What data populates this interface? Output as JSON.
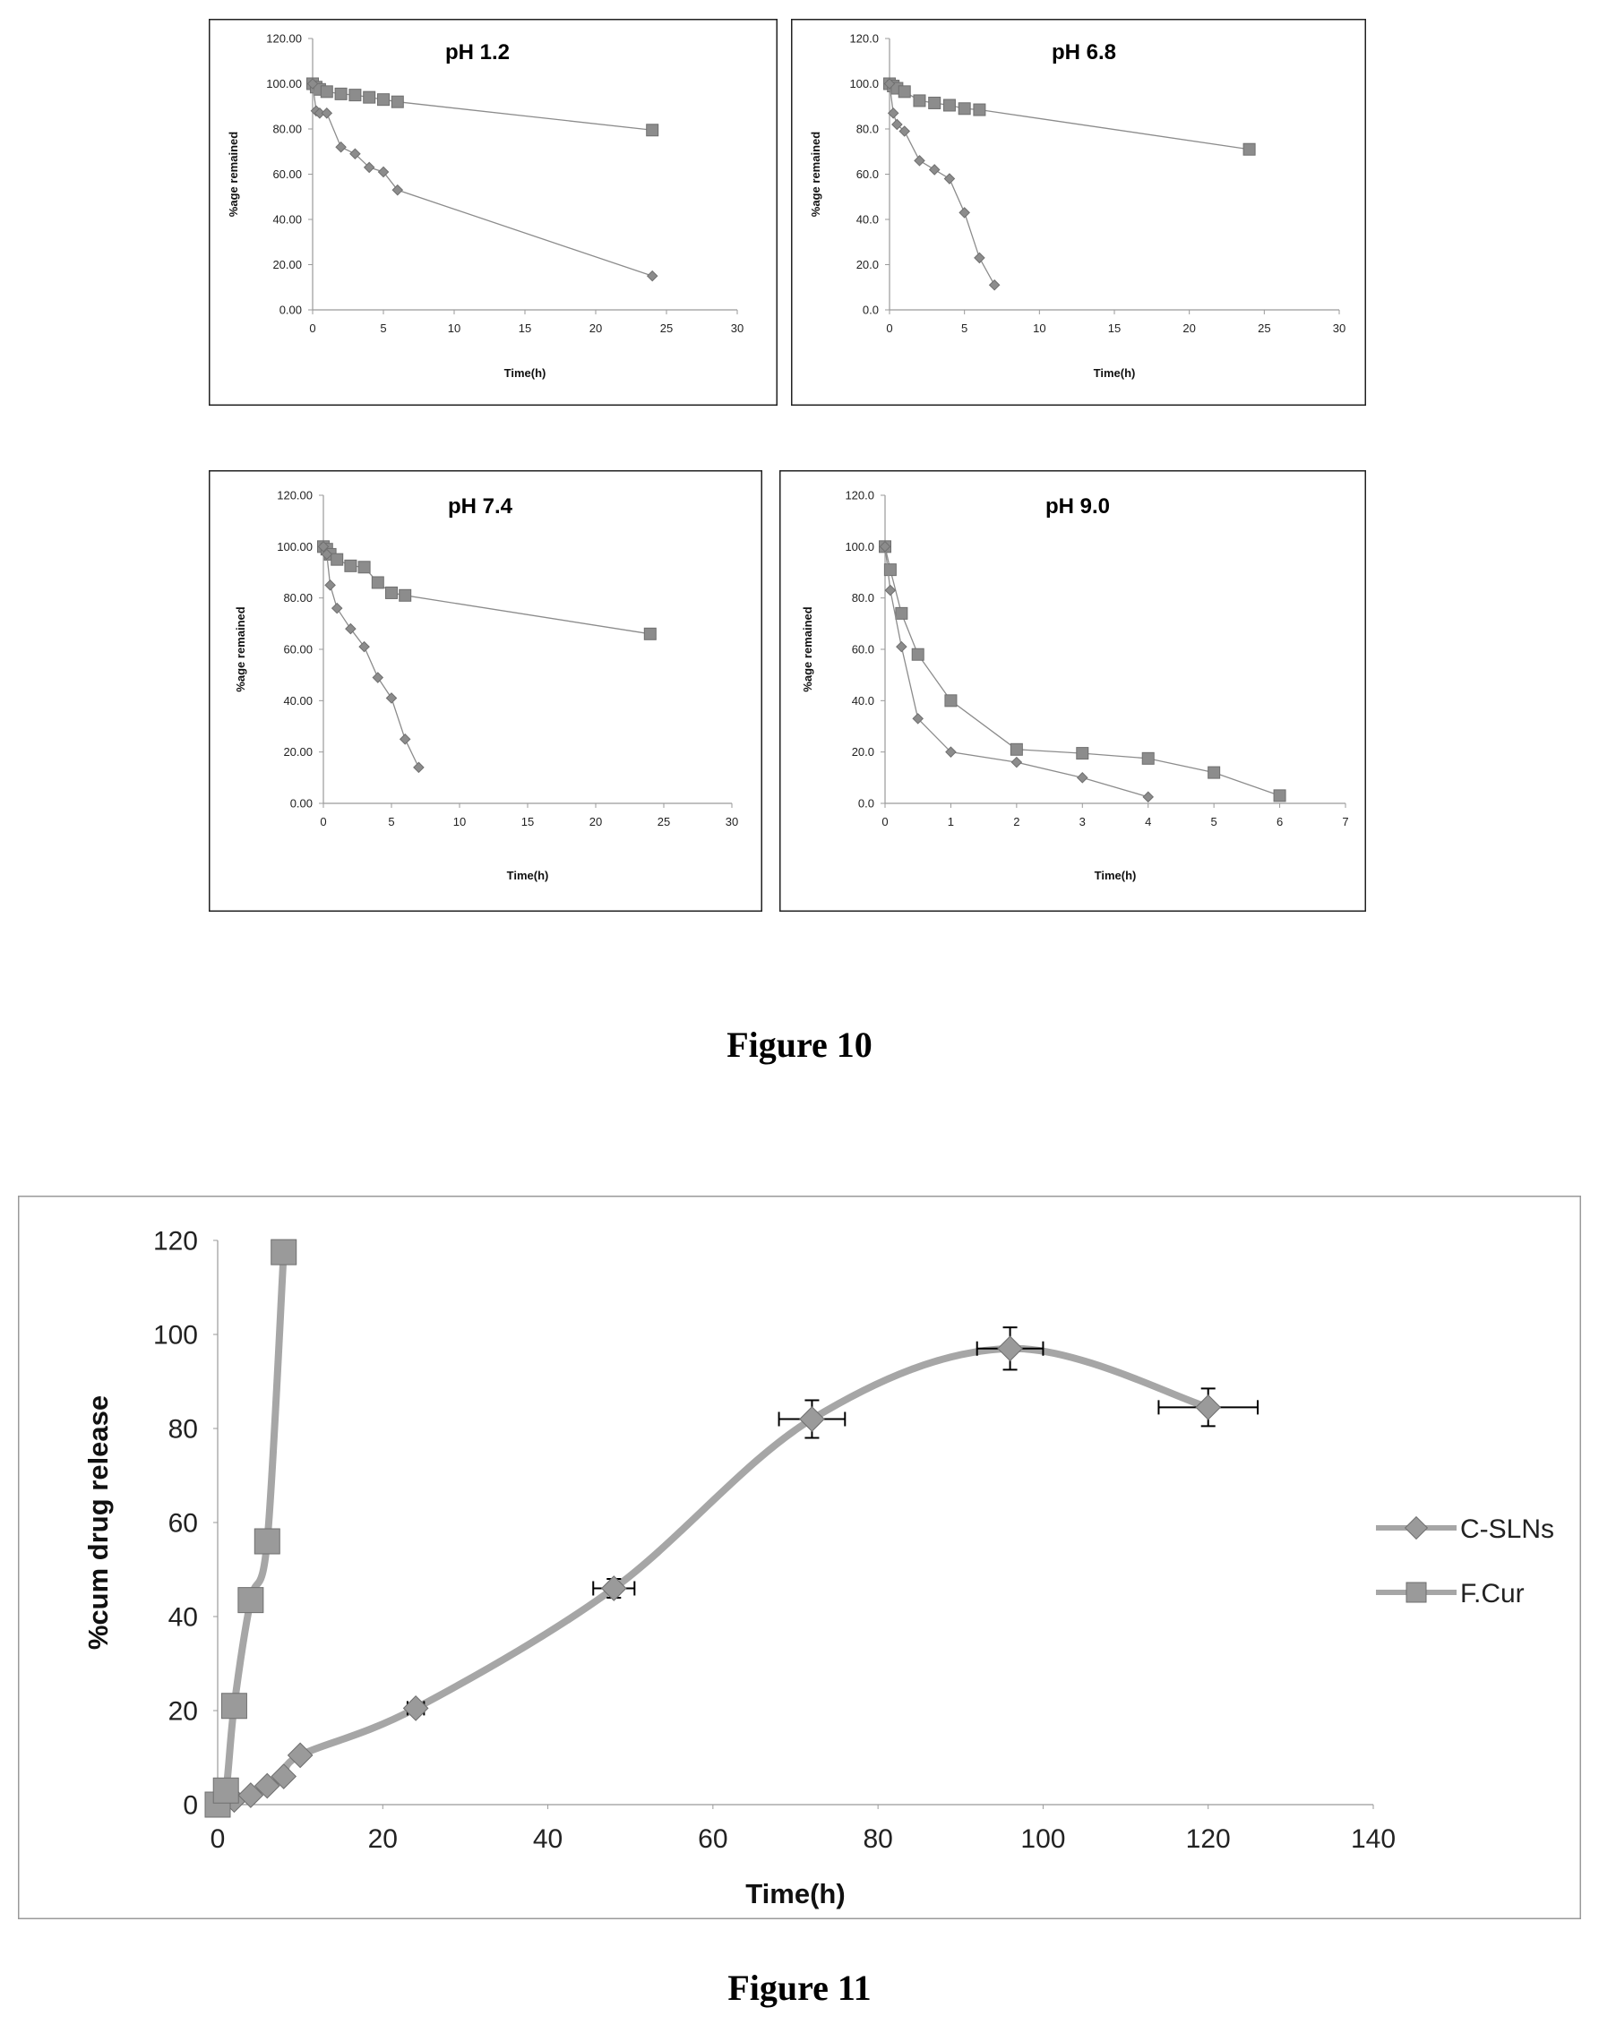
{
  "figure10": {
    "caption": "Figure 10"
  },
  "figure11": {
    "caption": "Figure 11"
  },
  "chart_data": [
    {
      "type": "line",
      "title": "pH 1.2",
      "xlabel": "Time(h)",
      "ylabel": "%age remained",
      "xlim": [
        0,
        30
      ],
      "ylim": [
        0,
        120
      ],
      "xticks": [
        "0",
        "5",
        "10",
        "15",
        "20",
        "25",
        "30"
      ],
      "yticks": [
        "0.00",
        "20.00",
        "40.00",
        "60.00",
        "80.00",
        "100.00",
        "120.00"
      ],
      "series": [
        {
          "marker": "square",
          "x": [
            0,
            0.25,
            0.5,
            1,
            2,
            3,
            4,
            5,
            6,
            24
          ],
          "y": [
            100,
            98.5,
            97.5,
            96.5,
            95.5,
            95,
            94,
            93,
            92,
            79.5
          ]
        },
        {
          "marker": "diamond",
          "x": [
            0,
            0.25,
            0.5,
            1,
            2,
            3,
            4,
            5,
            6,
            24
          ],
          "y": [
            100,
            88,
            87,
            87,
            72,
            69,
            63,
            61,
            53,
            15
          ]
        }
      ]
    },
    {
      "type": "line",
      "title": "pH 6.8",
      "xlabel": "Time(h)",
      "ylabel": "%age remained",
      "xlim": [
        0,
        30
      ],
      "ylim": [
        0,
        120
      ],
      "xticks": [
        "0",
        "5",
        "10",
        "15",
        "20",
        "25",
        "30"
      ],
      "yticks": [
        "0.0",
        "20.0",
        "40.0",
        "60.0",
        "80.0",
        "100.0",
        "120.0"
      ],
      "series": [
        {
          "marker": "square",
          "x": [
            0,
            0.25,
            0.5,
            1,
            2,
            3,
            4,
            5,
            6,
            24
          ],
          "y": [
            100,
            99,
            98,
            96.5,
            92.5,
            91.5,
            90.5,
            89,
            88.5,
            71
          ]
        },
        {
          "marker": "diamond",
          "x": [
            0,
            0.25,
            0.5,
            1,
            2,
            3,
            4,
            5,
            6,
            7
          ],
          "y": [
            100,
            87,
            82,
            79,
            66,
            62,
            58,
            43,
            23,
            11
          ]
        }
      ]
    },
    {
      "type": "line",
      "title": "pH 7.4",
      "xlabel": "Time(h)",
      "ylabel": "%age remained",
      "xlim": [
        0,
        30
      ],
      "ylim": [
        0,
        120
      ],
      "xticks": [
        "0",
        "5",
        "10",
        "15",
        "20",
        "25",
        "30"
      ],
      "yticks": [
        "0.00",
        "20.00",
        "40.00",
        "60.00",
        "80.00",
        "100.00",
        "120.00"
      ],
      "series": [
        {
          "marker": "square",
          "x": [
            0,
            0.25,
            0.5,
            1,
            2,
            3,
            4,
            5,
            6,
            24
          ],
          "y": [
            100,
            99,
            97,
            95,
            92.5,
            92,
            86,
            82,
            81,
            66
          ]
        },
        {
          "marker": "diamond",
          "x": [
            0,
            0.25,
            0.5,
            1,
            2,
            3,
            4,
            5,
            6,
            7
          ],
          "y": [
            100,
            97,
            85,
            76,
            68,
            61,
            49,
            41,
            25,
            14
          ]
        }
      ]
    },
    {
      "type": "line",
      "title": "pH 9.0",
      "xlabel": "Time(h)",
      "ylabel": "%age remained",
      "xlim": [
        0,
        7
      ],
      "ylim": [
        0,
        120
      ],
      "xticks": [
        "0",
        "1",
        "2",
        "3",
        "4",
        "5",
        "6",
        "7"
      ],
      "yticks": [
        "0.0",
        "20.0",
        "40.0",
        "60.0",
        "80.0",
        "100.0",
        "120.0"
      ],
      "series": [
        {
          "marker": "square",
          "x": [
            0,
            0.08,
            0.25,
            0.5,
            1,
            2,
            3,
            4,
            5,
            6
          ],
          "y": [
            100,
            91,
            74,
            58,
            40,
            21,
            19.5,
            17.5,
            12,
            3
          ]
        },
        {
          "marker": "diamond",
          "x": [
            0,
            0.08,
            0.25,
            0.5,
            1,
            2,
            3,
            4
          ],
          "y": [
            100,
            83,
            61,
            33,
            20,
            16,
            10,
            2.5
          ]
        }
      ]
    },
    {
      "type": "line",
      "title": "",
      "xlabel": "Time(h)",
      "ylabel": "%cum drug release",
      "xlim": [
        0,
        140
      ],
      "ylim": [
        0,
        120
      ],
      "xticks": [
        "0",
        "20",
        "40",
        "60",
        "80",
        "100",
        "120",
        "140"
      ],
      "yticks": [
        "0",
        "20",
        "40",
        "60",
        "80",
        "100",
        "120"
      ],
      "legend_position": "right",
      "series": [
        {
          "name": "C-SLNs",
          "marker": "diamond",
          "x": [
            0,
            2,
            4,
            6,
            8,
            10,
            24,
            48,
            72,
            96,
            120
          ],
          "y": [
            0,
            1,
            2,
            4,
            6,
            10.5,
            20.5,
            46,
            82,
            97,
            84.5
          ],
          "xerr": [
            0,
            0,
            0,
            0,
            0,
            0,
            1,
            2.5,
            4,
            4,
            6
          ],
          "yerr": [
            0,
            0,
            0,
            0,
            0,
            0,
            1,
            2,
            4,
            4.5,
            4
          ]
        },
        {
          "name": "F.Cur",
          "marker": "square",
          "x": [
            0,
            1,
            2,
            4,
            6,
            8
          ],
          "y": [
            0,
            3,
            21,
            43.5,
            56,
            117.5
          ],
          "yerr": [
            0,
            0,
            0,
            0,
            0,
            2
          ]
        }
      ]
    }
  ]
}
